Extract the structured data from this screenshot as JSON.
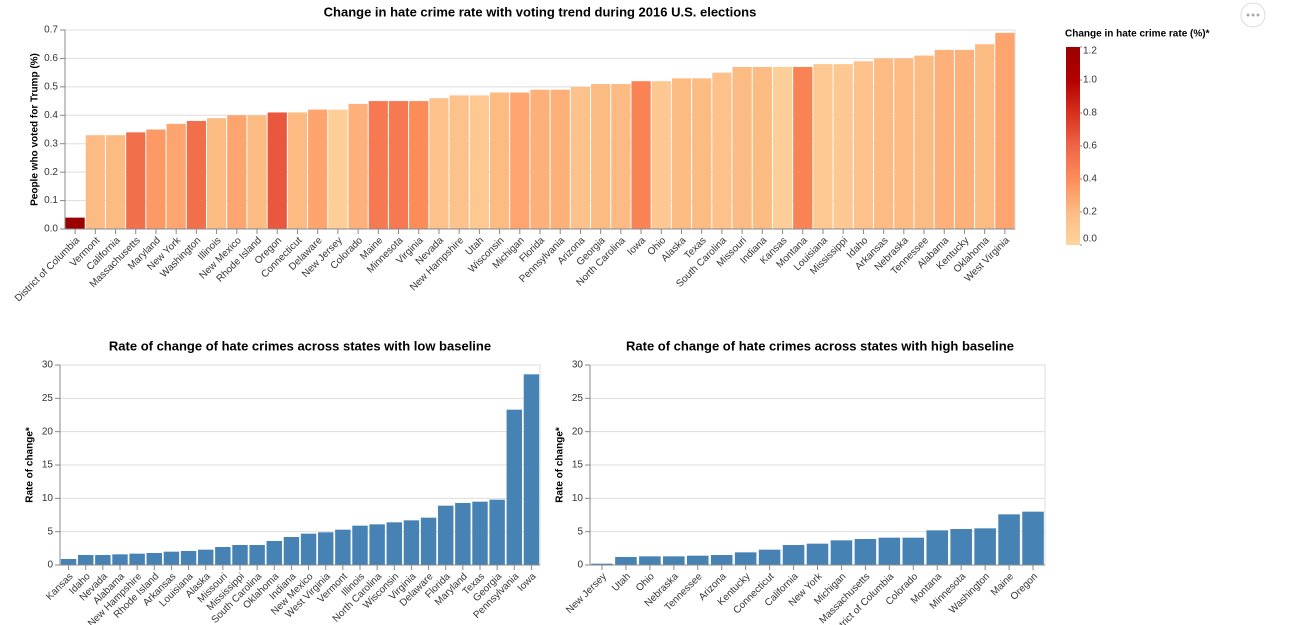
{
  "chart_data": [
    {
      "type": "bar",
      "title": "Change in hate crime rate with voting trend during 2016 U.S. elections",
      "ylabel": "People who voted for Trump (%)",
      "categories": [
        "District of Columbia",
        "Vermont",
        "California",
        "Massachusetts",
        "Maryland",
        "New York",
        "Washington",
        "Illinois",
        "New Mexico",
        "Rhode Island",
        "Oregon",
        "Connecticut",
        "Delaware",
        "New Jersey",
        "Colorado",
        "Maine",
        "Minnesota",
        "Virginia",
        "Nevada",
        "New Hampshire",
        "Utah",
        "Wisconsin",
        "Michigan",
        "Florida",
        "Pennsylvania",
        "Arizona",
        "Georgia",
        "North Carolina",
        "Iowa",
        "Ohio",
        "Alaska",
        "Texas",
        "South Carolina",
        "Missouri",
        "Indiana",
        "Kansas",
        "Montana",
        "Louisiana",
        "Mississippi",
        "Idaho",
        "Arkansas",
        "Nebraska",
        "Tennessee",
        "Alabama",
        "Kentucky",
        "Oklahoma",
        "West Virginia"
      ],
      "values": [
        0.04,
        0.33,
        0.33,
        0.34,
        0.35,
        0.37,
        0.38,
        0.39,
        0.4,
        0.4,
        0.41,
        0.41,
        0.42,
        0.42,
        0.44,
        0.45,
        0.45,
        0.45,
        0.46,
        0.47,
        0.47,
        0.48,
        0.48,
        0.49,
        0.49,
        0.5,
        0.51,
        0.51,
        0.52,
        0.52,
        0.53,
        0.53,
        0.55,
        0.57,
        0.57,
        0.57,
        0.57,
        0.58,
        0.58,
        0.59,
        0.6,
        0.6,
        0.61,
        0.63,
        0.63,
        0.65,
        0.69
      ],
      "color_values": [
        1.2,
        0.2,
        0.2,
        0.55,
        0.35,
        0.3,
        0.55,
        0.2,
        0.3,
        0.2,
        0.65,
        0.2,
        0.3,
        0.05,
        0.25,
        0.5,
        0.5,
        0.4,
        0.15,
        0.15,
        0.1,
        0.2,
        0.3,
        0.25,
        0.25,
        0.15,
        0.2,
        0.2,
        0.45,
        0.1,
        0.2,
        0.2,
        0.15,
        0.2,
        0.2,
        0.05,
        0.45,
        0.1,
        0.1,
        0.15,
        0.2,
        0.2,
        0.2,
        0.25,
        0.25,
        0.2,
        0.3
      ],
      "colorscale": [
        "#fdd49e",
        "#fdbb84",
        "#fc8d59",
        "#ef6548",
        "#d7301f",
        "#b30000",
        "#9a0000"
      ],
      "color_legend": {
        "title": "Change in hate crime rate (%)*",
        "lim": [
          0,
          1.2
        ],
        "ticks": [
          {
            "value": 0,
            "label": "0.0"
          },
          0.2,
          0.4,
          0.6,
          0.8,
          {
            "value": 1,
            "label": "1.0"
          },
          1.2
        ]
      },
      "ylim": [
        0,
        0.7
      ],
      "yticks": [
        {
          "value": 0,
          "label": "0.0"
        },
        0.1,
        0.2,
        0.3,
        0.4,
        0.5,
        0.6,
        0.7
      ],
      "grid": true
    },
    {
      "type": "bar",
      "title": "Rate of change of hate crimes across states with low baseline",
      "ylabel": "Rate of change*",
      "categories": [
        "Kansas",
        "Idaho",
        "Nevada",
        "Alabama",
        "New Hampshire",
        "Rhode Island",
        "Arkansas",
        "Louisiana",
        "Alaska",
        "Missouri",
        "Mississippi",
        "South Carolina",
        "Oklahoma",
        "Indiana",
        "New Mexico",
        "West Virginia",
        "Vermont",
        "Illinois",
        "North Carolina",
        "Wisconsin",
        "Virginia",
        "Delaware",
        "Florida",
        "Maryland",
        "Texas",
        "Georgia",
        "Pennsylvania",
        "Iowa"
      ],
      "values": [
        0.9,
        1.5,
        1.5,
        1.6,
        1.7,
        1.8,
        2.0,
        2.1,
        2.3,
        2.7,
        3.0,
        3.0,
        3.6,
        4.2,
        4.7,
        4.9,
        5.3,
        5.9,
        6.1,
        6.4,
        6.7,
        7.1,
        8.9,
        9.3,
        9.5,
        9.8,
        23.3,
        28.6
      ],
      "color": "#4682b4",
      "ylim": [
        0,
        30
      ],
      "yticks": [
        0,
        5,
        10,
        15,
        20,
        25,
        30
      ],
      "grid": true
    },
    {
      "type": "bar",
      "title": "Rate of change of hate crimes across states with high baseline",
      "ylabel": "Rate of change*",
      "categories": [
        "New Jersey",
        "Utah",
        "Ohio",
        "Nebraska",
        "Tennessee",
        "Arizona",
        "Kentucky",
        "Connecticut",
        "California",
        "New York",
        "Michigan",
        "Massachusetts",
        "District of Columbia",
        "Colorado",
        "Montana",
        "Minnesota",
        "Washington",
        "Maine",
        "Oregon"
      ],
      "values": [
        0.2,
        1.2,
        1.3,
        1.3,
        1.4,
        1.5,
        1.9,
        2.3,
        3.0,
        3.2,
        3.7,
        3.9,
        4.1,
        4.1,
        5.2,
        5.4,
        5.5,
        7.6,
        8.0
      ],
      "color": "#4682b4",
      "ylim": [
        0,
        30
      ],
      "yticks": [
        0,
        5,
        10,
        15,
        20,
        25,
        30
      ],
      "grid": true
    }
  ]
}
